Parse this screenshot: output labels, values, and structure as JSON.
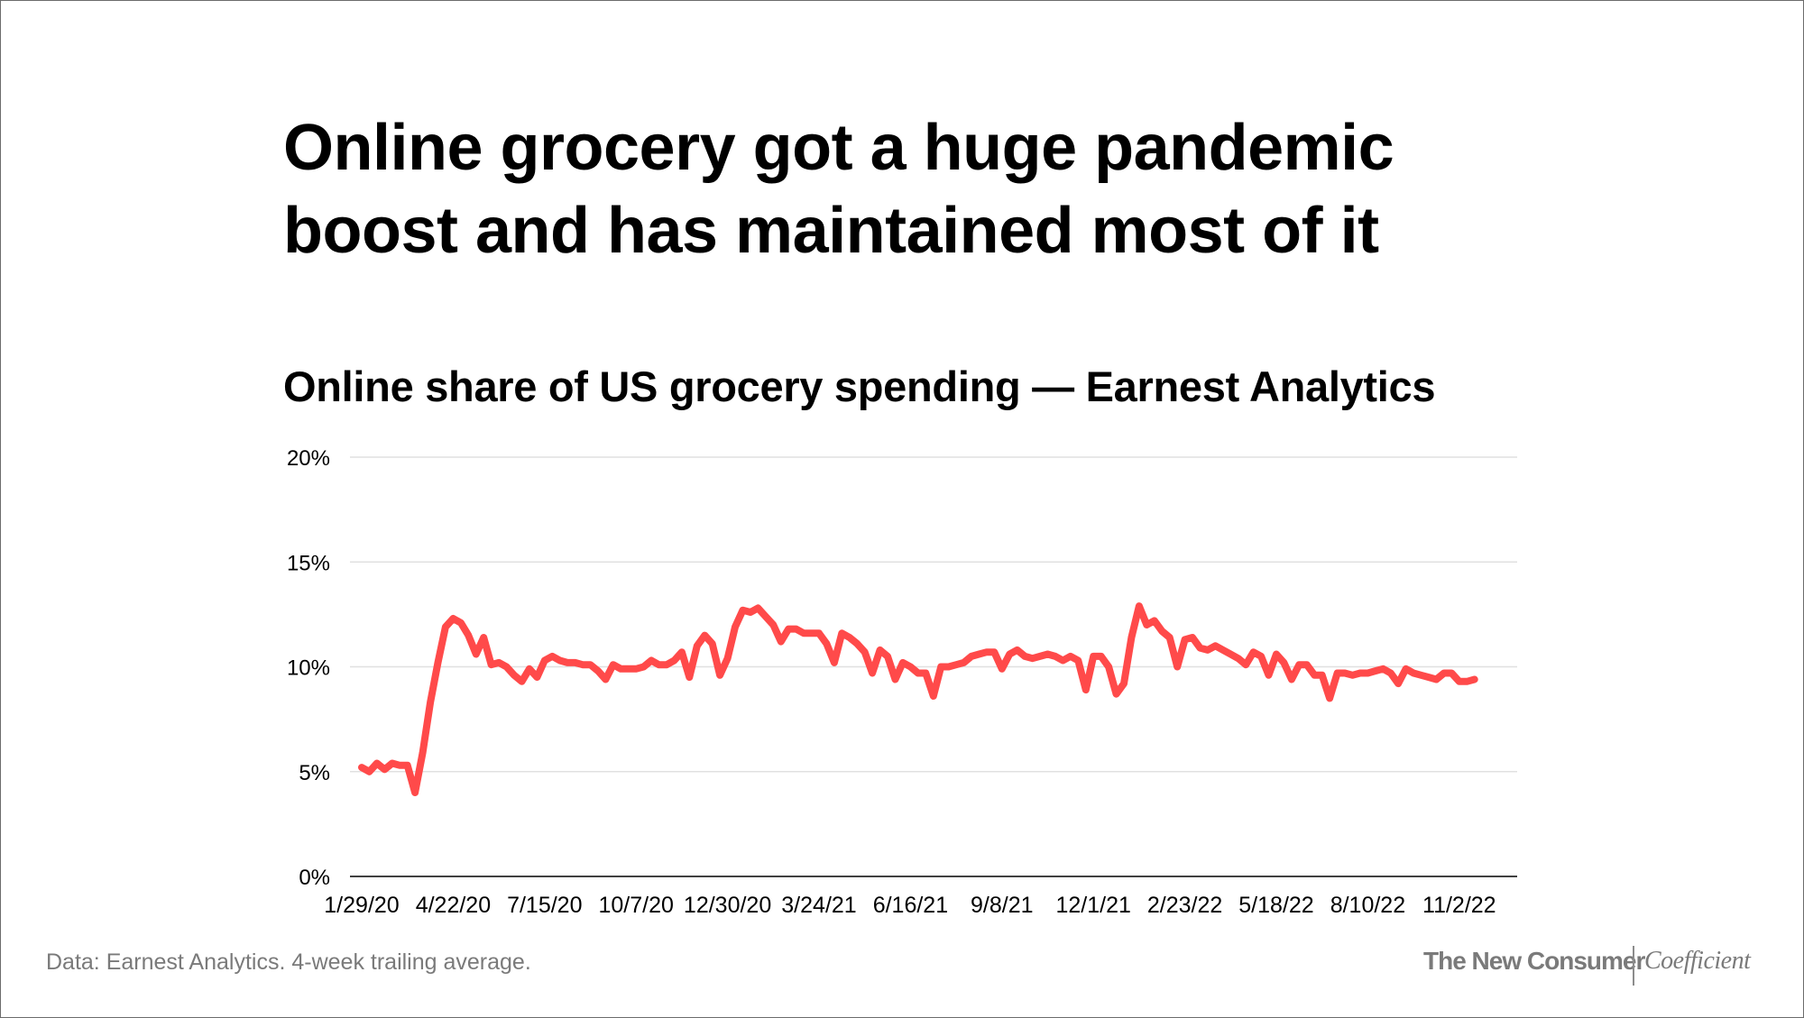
{
  "headline": {
    "line1": "Online grocery got a huge pandemic",
    "line2": "boost and has maintained most of it"
  },
  "footer": {
    "note": "Data: Earnest Analytics. 4-week trailing average.",
    "brand_primary": "The New Consumer",
    "brand_secondary": "Coefficient"
  },
  "colors": {
    "line": "#ff4a4a",
    "grid": "#e0e0e0",
    "axis": "#000000"
  },
  "chart_data": {
    "type": "line",
    "title": "Online share of US grocery spending — Earnest Analytics",
    "xlabel": "",
    "ylabel": "",
    "ylim": [
      0,
      20
    ],
    "y_ticks": [
      "0%",
      "5%",
      "10%",
      "15%",
      "20%"
    ],
    "x_tick_labels": [
      "1/29/20",
      "4/22/20",
      "7/15/20",
      "10/7/20",
      "12/30/20",
      "3/24/21",
      "6/16/21",
      "9/8/21",
      "12/1/21",
      "2/23/22",
      "5/18/22",
      "8/10/22",
      "11/2/22"
    ],
    "grid": true,
    "frequency": "weekly",
    "x_start": "1/29/20",
    "x_end": "12/7/22",
    "series": [
      {
        "name": "",
        "values": [
          5.2,
          5.0,
          5.4,
          5.1,
          5.4,
          5.3,
          5.3,
          4.0,
          5.9,
          8.3,
          10.2,
          11.9,
          12.3,
          12.1,
          11.5,
          10.6,
          11.4,
          10.1,
          10.2,
          10.0,
          9.6,
          9.3,
          9.9,
          9.5,
          10.3,
          10.5,
          10.3,
          10.2,
          10.2,
          10.1,
          10.1,
          9.8,
          9.4,
          10.1,
          9.9,
          9.9,
          9.9,
          10.0,
          10.3,
          10.1,
          10.1,
          10.3,
          10.7,
          9.5,
          11.0,
          11.5,
          11.1,
          9.6,
          10.4,
          11.9,
          12.7,
          12.6,
          12.8,
          12.4,
          12.0,
          11.2,
          11.8,
          11.8,
          11.6,
          11.6,
          11.6,
          11.1,
          10.2,
          11.6,
          11.4,
          11.1,
          10.7,
          9.7,
          10.8,
          10.5,
          9.4,
          10.2,
          10.0,
          9.7,
          9.7,
          8.6,
          10.0,
          10.0,
          10.1,
          10.2,
          10.5,
          10.6,
          10.7,
          10.7,
          9.9,
          10.6,
          10.8,
          10.5,
          10.4,
          10.5,
          10.6,
          10.5,
          10.3,
          10.5,
          10.3,
          8.9,
          10.5,
          10.5,
          10.0,
          8.7,
          9.2,
          11.4,
          12.9,
          12.0,
          12.2,
          11.7,
          11.4,
          10.0,
          11.3,
          11.4,
          10.9,
          10.8,
          11.0,
          10.8,
          10.6,
          10.4,
          10.1,
          10.7,
          10.5,
          9.6,
          10.6,
          10.2,
          9.4,
          10.1,
          10.1,
          9.6,
          9.6,
          8.5,
          9.7,
          9.7,
          9.6,
          9.7,
          9.7,
          9.8,
          9.9,
          9.7,
          9.2,
          9.9,
          9.7,
          9.6,
          9.5,
          9.4,
          9.7,
          9.7,
          9.3,
          9.3,
          9.4
        ]
      }
    ]
  }
}
